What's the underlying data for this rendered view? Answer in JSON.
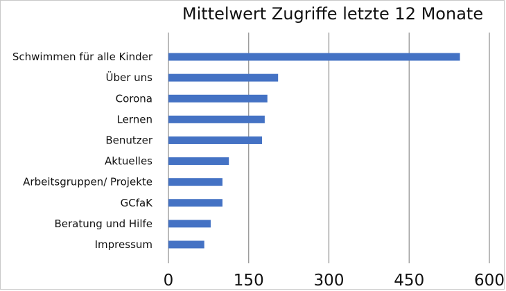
{
  "chart_data": {
    "type": "bar",
    "orientation": "horizontal",
    "title": "Mittelwert Zugriffe letzte 12 Monate",
    "xlabel": "",
    "ylabel": "",
    "categories": [
      "Schwimmen für alle Kinder",
      "Über uns",
      "Corona",
      "Lernen",
      "Benutzer",
      "Aktuelles",
      "Arbeitsgruppen/ Projekte",
      "GCfaK",
      "Beratung und Hilfe",
      "Impressum"
    ],
    "values": [
      545,
      205,
      185,
      180,
      175,
      113,
      101,
      101,
      79,
      67
    ],
    "xlim": [
      0,
      600
    ],
    "xticks": [
      "0",
      "150",
      "300",
      "450",
      "600"
    ],
    "grid": "vertical",
    "legend": "none",
    "bar_color": "#4472C4",
    "grid_color": "#8c8c8c"
  }
}
